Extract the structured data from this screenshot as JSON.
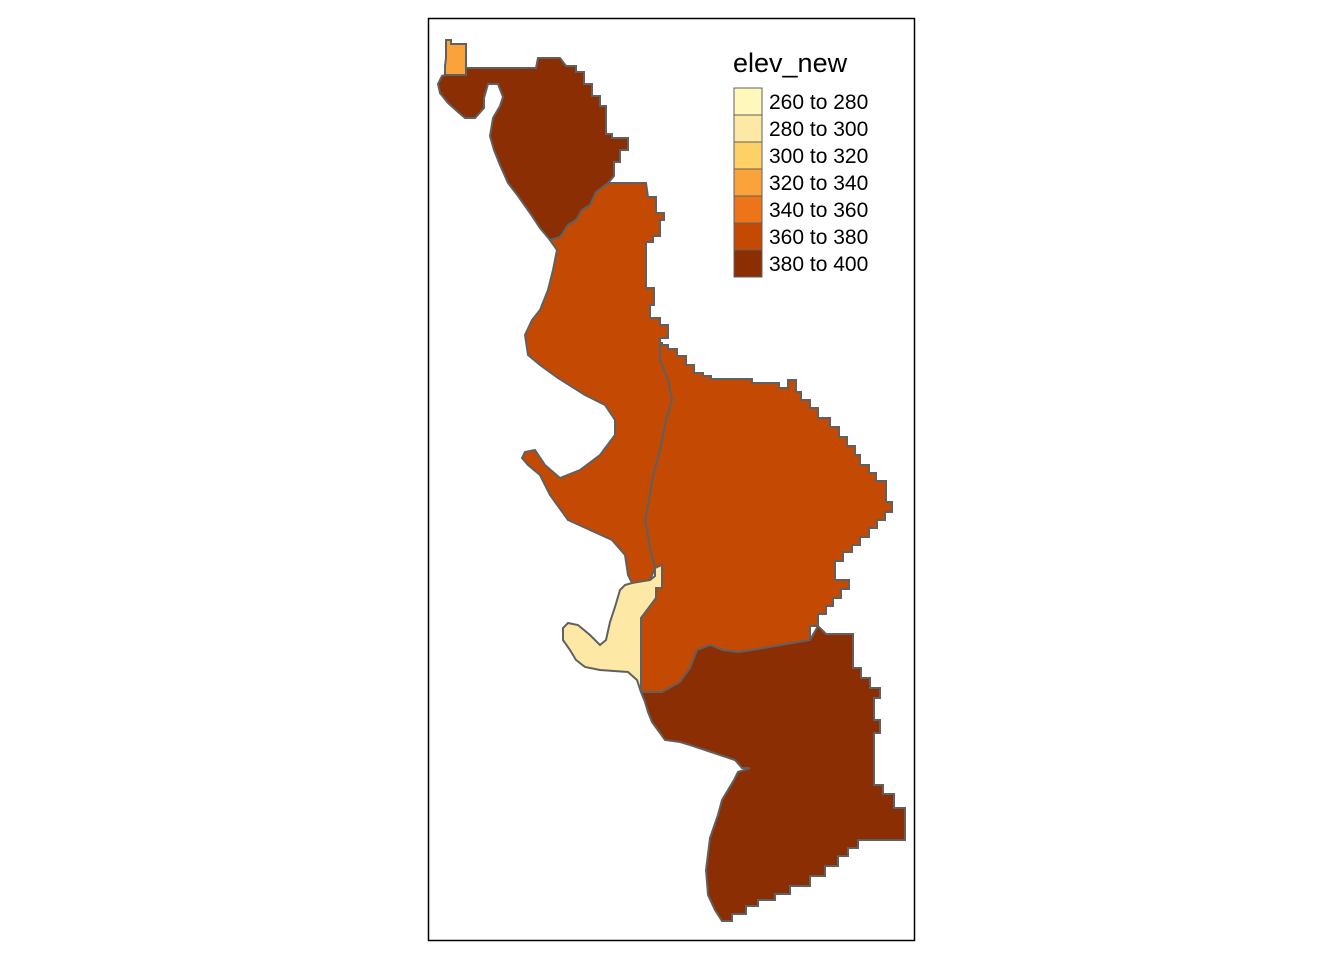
{
  "map": {
    "legend": {
      "title": "elev_new",
      "items": [
        {
          "label": "260 to 280",
          "color": "#FFF7BC"
        },
        {
          "label": "280 to 300",
          "color": "#FEE8A6"
        },
        {
          "label": "300 to 320",
          "color": "#FED166"
        },
        {
          "label": "320 to 340",
          "color": "#FBA33B"
        },
        {
          "label": "340 to 360",
          "color": "#ED7419"
        },
        {
          "label": "360 to 380",
          "color": "#C44A03"
        },
        {
          "label": "380 to 400",
          "color": "#8C2E04"
        }
      ]
    },
    "regions": [
      {
        "name": "region-northwest-tip",
        "class": "320 to 340",
        "color": "#FBA33B"
      },
      {
        "name": "region-north",
        "class": "380 to 400",
        "color": "#8C2E04"
      },
      {
        "name": "region-central-west",
        "class": "360 to 380",
        "color": "#C44A03"
      },
      {
        "name": "region-central-east",
        "class": "360 to 380",
        "color": "#C44A03"
      },
      {
        "name": "region-southwest-low",
        "class": "280 to 300",
        "color": "#FEE8A6"
      },
      {
        "name": "region-south",
        "class": "380 to 400",
        "color": "#8C2E04"
      }
    ]
  }
}
